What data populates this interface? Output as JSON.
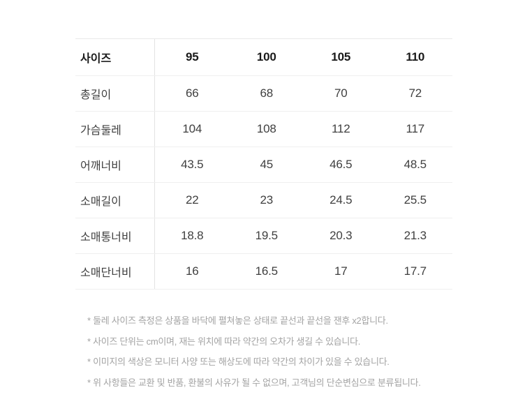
{
  "table": {
    "header": {
      "label": "사이즈",
      "columns": [
        "95",
        "100",
        "105",
        "110"
      ]
    },
    "rows": [
      {
        "label": "총길이",
        "values": [
          "66",
          "68",
          "70",
          "72"
        ]
      },
      {
        "label": "가슴둘레",
        "values": [
          "104",
          "108",
          "112",
          "117"
        ]
      },
      {
        "label": "어깨너비",
        "values": [
          "43.5",
          "45",
          "46.5",
          "48.5"
        ]
      },
      {
        "label": "소매길이",
        "values": [
          "22",
          "23",
          "24.5",
          "25.5"
        ]
      },
      {
        "label": "소매통너비",
        "values": [
          "18.8",
          "19.5",
          "20.3",
          "21.3"
        ]
      },
      {
        "label": "소매단너비",
        "values": [
          "16",
          "16.5",
          "17",
          "17.7"
        ]
      }
    ]
  },
  "footnotes": [
    "* 둘레 사이즈 측정은 상품을 바닥에 펼쳐놓은 상태로 끝선과 끝선을 잰후 x2합니다.",
    "* 사이즈 단위는 cm이며, 재는 위치에 따라 약간의 오차가 생길 수 있습니다.",
    "* 이미지의 색상은 모니터 사양 또는 해상도에 따라 약간의 차이가 있을 수 있습니다.",
    "* 위 사항들은 교환 및 반품, 환불의 사유가 될 수 없으며, 고객님의 단순변심으로 분류됩니다."
  ],
  "colors": {
    "background": "#ffffff",
    "header_text": "#191919",
    "body_text": "#3f3f3f",
    "footnote_text": "#a3a3a3",
    "border_horizontal": "#efefef",
    "border_vertical": "#e3e3e3"
  }
}
